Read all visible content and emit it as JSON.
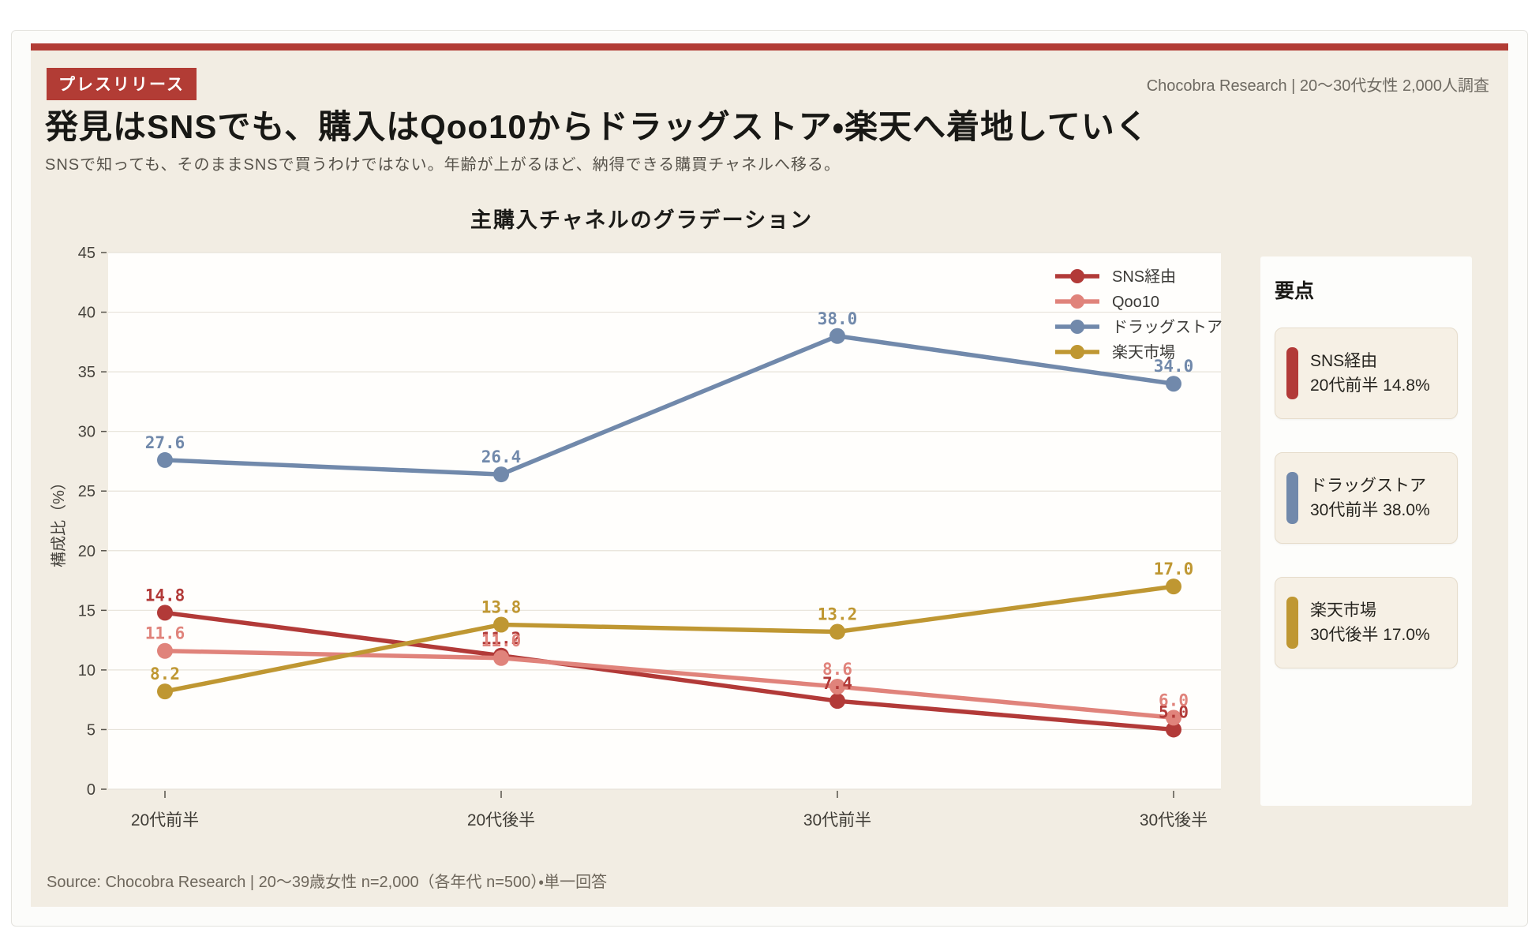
{
  "page": {
    "badge": "プレスリリース",
    "title": "発見はSNSでも、購入はQoo10からドラッグストア・楽天へ着地していく",
    "subtitle": "SNSで知っても、そのままSNSで買うわけではない。年齢が上がるほど、納得できる購買チャネルへ移る。",
    "meta": "Chocobra Research | 20〜30代女性 2,000人調査",
    "footer": "Source: Chocobra Research | 20〜39歳女性 n=2,000（各年代 n=500）・単一回答"
  },
  "colors": {
    "accent_red": "#b23c35",
    "panel_bg": "#f2ede3",
    "plot_bg": "#fffefc",
    "grid": "#e7e3d9"
  },
  "chart_data": {
    "type": "line",
    "title": "主購入チャネルのグラデーション",
    "categories": [
      "20代前半",
      "20代後半",
      "30代前半",
      "30代後半"
    ],
    "series": [
      {
        "name": "SNS経由",
        "color": "#b23a38",
        "values": [
          14.8,
          11.2,
          7.4,
          5.0
        ]
      },
      {
        "name": "Qoo10",
        "color": "#e0837b",
        "values": [
          11.6,
          11.0,
          8.6,
          6.0
        ]
      },
      {
        "name": "ドラッグストア",
        "color": "#7189ab",
        "values": [
          27.6,
          26.4,
          38.0,
          34.0
        ]
      },
      {
        "name": "楽天市場",
        "color": "#bf9732",
        "values": [
          8.2,
          13.8,
          13.2,
          17.0
        ]
      }
    ],
    "xlabel": "",
    "ylabel": "構成比（%）",
    "ylim": [
      0,
      45
    ],
    "yticks": [
      0,
      5,
      10,
      15,
      20,
      25,
      30,
      35,
      40,
      45
    ],
    "grid": true,
    "legend_position": "top-right"
  },
  "sidebar": {
    "title": "要点",
    "cards": [
      {
        "name": "SNS経由",
        "value": "20代前半 14.8%",
        "color": "#b23a38"
      },
      {
        "name": "ドラッグストア",
        "value": "30代前半 38.0%",
        "color": "#7189ab"
      },
      {
        "name": "楽天市場",
        "value": "30代後半 17.0%",
        "color": "#bf9732"
      }
    ]
  }
}
